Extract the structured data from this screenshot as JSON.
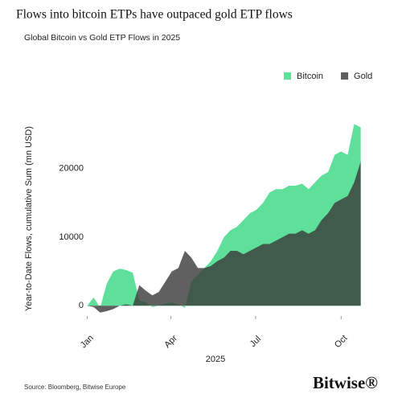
{
  "chart_data": {
    "type": "area",
    "title": "Flows into bitcoin ETPs have outpaced gold ETP flows",
    "subtitle": "Global Bitcoin vs Gold ETP Flows in 2025",
    "y_label": "Year-to-Date Flows, cumulative Sum (mn USD)",
    "x_label": "2025",
    "source": "Source: Bloomberg, Bitwise Europe",
    "brand": "Bitwise®",
    "legend": "top-right",
    "x": [
      0,
      7,
      14,
      21,
      28,
      35,
      42,
      49,
      56,
      63,
      70,
      77,
      84,
      91,
      98,
      105,
      112,
      119,
      126,
      133,
      140,
      147,
      154,
      161,
      168,
      175,
      182,
      189,
      196,
      203,
      210,
      217,
      224,
      231,
      238,
      245,
      252,
      259,
      266,
      273,
      280,
      287,
      294
    ],
    "xlim": [
      -9,
      309
    ],
    "xticks": [
      {
        "value": 0,
        "label": "Jan"
      },
      {
        "value": 90,
        "label": "Apr"
      },
      {
        "value": 181,
        "label": "Jul"
      },
      {
        "value": 273,
        "label": "Oct"
      }
    ],
    "ylim": [
      -1500,
      27000
    ],
    "yticks": [
      0,
      10000,
      20000
    ],
    "series": [
      {
        "name": "Bitcoin",
        "color": "#5fe09a",
        "opacity": 1,
        "values": [
          0,
          1200,
          -300,
          3200,
          5000,
          5400,
          5200,
          4800,
          800,
          500,
          -200,
          0,
          300,
          500,
          200,
          -300,
          3500,
          4500,
          5500,
          6500,
          8000,
          10000,
          11000,
          11500,
          12500,
          13500,
          14000,
          15000,
          16500,
          17000,
          17000,
          17500,
          17500,
          17800,
          17000,
          18000,
          19000,
          19500,
          22000,
          22500,
          22000,
          26500,
          26000
        ]
      },
      {
        "name": "Gold",
        "color": "#383838",
        "opacity": 0.8,
        "values": [
          0,
          -200,
          -1000,
          -800,
          -500,
          0,
          200,
          0,
          3000,
          2200,
          1500,
          2000,
          3500,
          5000,
          5500,
          8000,
          7000,
          5500,
          5500,
          5800,
          6500,
          7000,
          8000,
          8000,
          7500,
          8000,
          8500,
          9000,
          9000,
          9500,
          10000,
          10500,
          10500,
          11000,
          10500,
          11000,
          12500,
          13500,
          15000,
          15500,
          16000,
          18000,
          21000
        ]
      }
    ]
  }
}
